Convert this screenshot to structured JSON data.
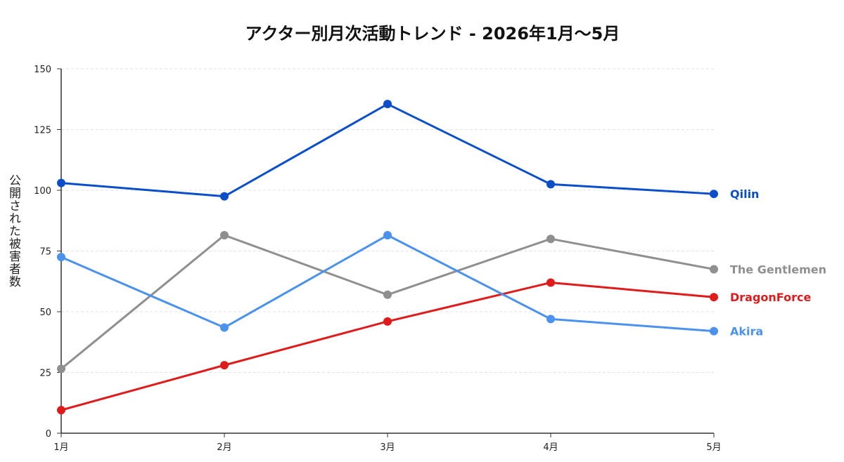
{
  "chart_data": {
    "type": "line",
    "title": "アクター別月次活動トレンド - 2026年1月〜5月",
    "ylabel": "公開された被害者数",
    "xlabel": "",
    "categories": [
      "1月",
      "2月",
      "3月",
      "4月",
      "5月"
    ],
    "ylim": [
      0,
      150
    ],
    "yticks": [
      0,
      25,
      50,
      75,
      100,
      125,
      150
    ],
    "grid": true,
    "legend": "inline-right",
    "series": [
      {
        "name": "Qilin",
        "color": "#0a4fc9",
        "values": [
          103,
          97.5,
          135.5,
          102.5,
          98.5
        ]
      },
      {
        "name": "The Gentlemen",
        "color": "#8f8f8f",
        "values": [
          26.5,
          81.5,
          57,
          80,
          67.5
        ]
      },
      {
        "name": "DragonForce",
        "color": "#e01b1b",
        "values": [
          9.5,
          28,
          46,
          62,
          56
        ]
      },
      {
        "name": "Akira",
        "color": "#4a92ee",
        "values": [
          72.5,
          43.5,
          81.5,
          47,
          42
        ]
      }
    ]
  }
}
